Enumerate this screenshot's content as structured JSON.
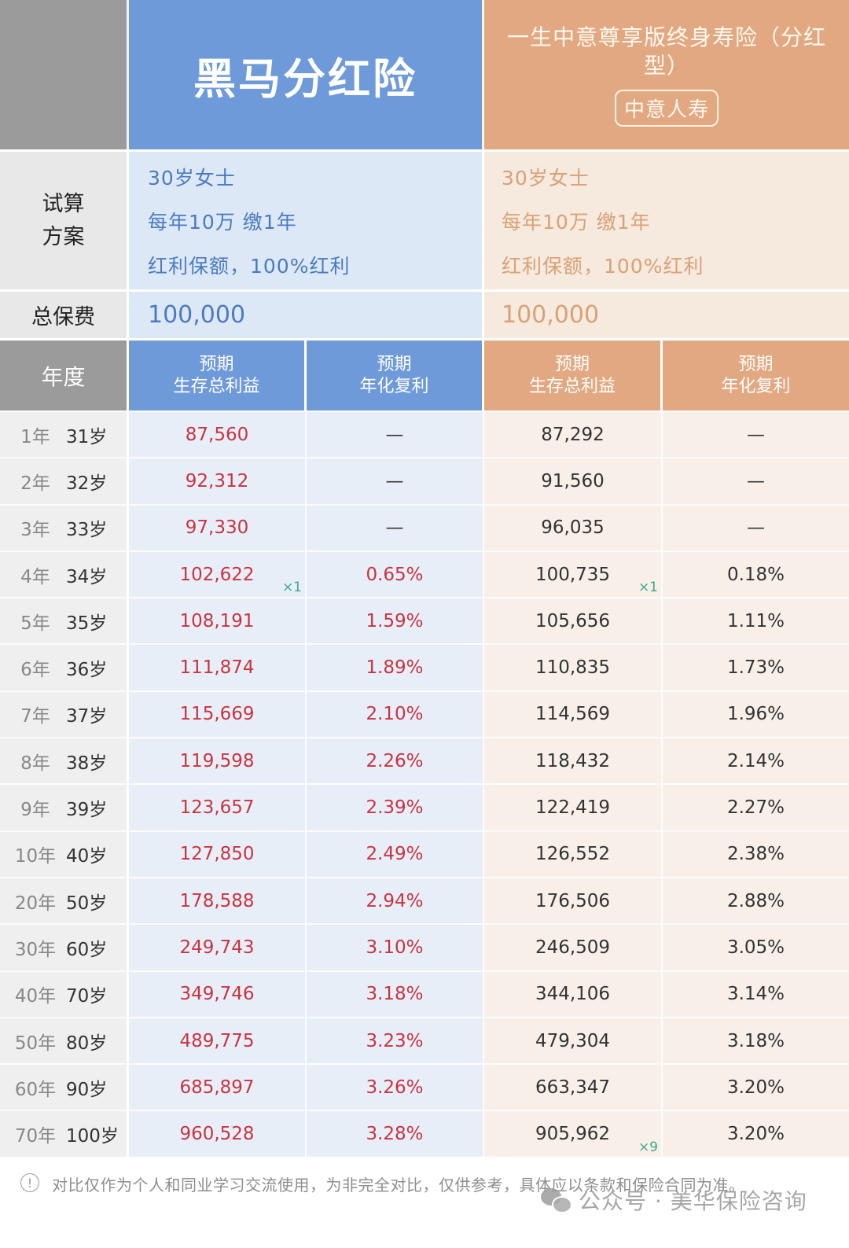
{
  "header": {
    "product_a": {
      "name": "黑马分红险",
      "color": "#6f9ad9"
    },
    "product_b": {
      "name": "一生中意尊享版终身寿险（分红型）",
      "insurer_badge": "中意人寿",
      "color": "#e2a882"
    }
  },
  "plan": {
    "label": "试算\n方案",
    "label_line1": "试算",
    "label_line2": "方案",
    "product_a": [
      "30岁女士",
      "每年10万 缴1年",
      "红利保额，100%红利"
    ],
    "product_b": [
      "30岁女士",
      "每年10万 缴1年",
      "红利保额，100%红利"
    ]
  },
  "premium": {
    "label": "总保费",
    "product_a": "100,000",
    "product_b": "100,000"
  },
  "columns": {
    "year": "年度",
    "survival_line1": "预期",
    "survival_line2": "生存总利益",
    "irr_line1": "预期",
    "irr_line2": "年化复利"
  },
  "rows": [
    {
      "year": "1年",
      "age": "31岁",
      "a_total": "87,560",
      "a_irr": "—",
      "b_total": "87,292",
      "b_irr": "—"
    },
    {
      "year": "2年",
      "age": "32岁",
      "a_total": "92,312",
      "a_irr": "—",
      "b_total": "91,560",
      "b_irr": "—"
    },
    {
      "year": "3年",
      "age": "33岁",
      "a_total": "97,330",
      "a_irr": "—",
      "b_total": "96,035",
      "b_irr": "—"
    },
    {
      "year": "4年",
      "age": "34岁",
      "a_total": "102,622",
      "a_irr": "0.65%",
      "b_total": "100,735",
      "b_irr": "0.18%",
      "a_mult": "×1",
      "b_mult": "×1"
    },
    {
      "year": "5年",
      "age": "35岁",
      "a_total": "108,191",
      "a_irr": "1.59%",
      "b_total": "105,656",
      "b_irr": "1.11%"
    },
    {
      "year": "6年",
      "age": "36岁",
      "a_total": "111,874",
      "a_irr": "1.89%",
      "b_total": "110,835",
      "b_irr": "1.73%"
    },
    {
      "year": "7年",
      "age": "37岁",
      "a_total": "115,669",
      "a_irr": "2.10%",
      "b_total": "114,569",
      "b_irr": "1.96%"
    },
    {
      "year": "8年",
      "age": "38岁",
      "a_total": "119,598",
      "a_irr": "2.26%",
      "b_total": "118,432",
      "b_irr": "2.14%"
    },
    {
      "year": "9年",
      "age": "39岁",
      "a_total": "123,657",
      "a_irr": "2.39%",
      "b_total": "122,419",
      "b_irr": "2.27%"
    },
    {
      "year": "10年",
      "age": "40岁",
      "a_total": "127,850",
      "a_irr": "2.49%",
      "b_total": "126,552",
      "b_irr": "2.38%"
    },
    {
      "year": "20年",
      "age": "50岁",
      "a_total": "178,588",
      "a_irr": "2.94%",
      "b_total": "176,506",
      "b_irr": "2.88%"
    },
    {
      "year": "30年",
      "age": "60岁",
      "a_total": "249,743",
      "a_irr": "3.10%",
      "b_total": "246,509",
      "b_irr": "3.05%"
    },
    {
      "year": "40年",
      "age": "70岁",
      "a_total": "349,746",
      "a_irr": "3.18%",
      "b_total": "344,106",
      "b_irr": "3.14%"
    },
    {
      "year": "50年",
      "age": "80岁",
      "a_total": "489,775",
      "a_irr": "3.23%",
      "b_total": "479,304",
      "b_irr": "3.18%"
    },
    {
      "year": "60年",
      "age": "90岁",
      "a_total": "685,897",
      "a_irr": "3.26%",
      "b_total": "663,347",
      "b_irr": "3.20%"
    },
    {
      "year": "70年",
      "age": "100岁",
      "a_total": "960,528",
      "a_irr": "3.28%",
      "b_total": "905,962",
      "b_irr": "3.20%",
      "b_mult": "×9"
    }
  ],
  "footer": {
    "info_icon": "info-circle-icon",
    "disclaimer": "对比仅作为个人和同业学习交流使用，为非完全对比，仅供参考，具体应以条款和保险合同为准。",
    "watermark": "公众号 · 美华保险咨询",
    "watermark_icon": "wechat-icon"
  },
  "colors": {
    "a_value_text": "#c8343f",
    "b_value_text": "#333333",
    "multiplier": "#3aa88a"
  }
}
